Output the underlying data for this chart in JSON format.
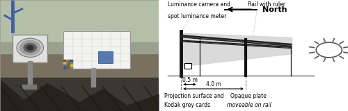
{
  "background_color": "#ffffff",
  "north_label": "North",
  "label_luminance_1": "Luminance camera and",
  "label_luminance_2": "spot luminance meter",
  "label_rail": "Rail with ruler",
  "label_proj_1": "Projection surface and",
  "label_proj_2": "Kodak grey cards",
  "label_opaque_1": "Opaque plate",
  "label_opaque_2": "moveable on rail",
  "dist_05": "0.5 m",
  "dist_40": "4.0 m",
  "photo_bg_sky": "#b0b898",
  "photo_bg_roof": "#7a7060",
  "diagram_bg": "#ffffff",
  "sun_color": "#ffffff",
  "sun_edge": "#555555",
  "beam_color": "#d0d0d0",
  "rail_color": "#333333",
  "ground_color": "#777777",
  "screen_color": "#111111",
  "font_size_label": 5.5,
  "font_size_dim": 5.5,
  "font_size_north": 8.0
}
